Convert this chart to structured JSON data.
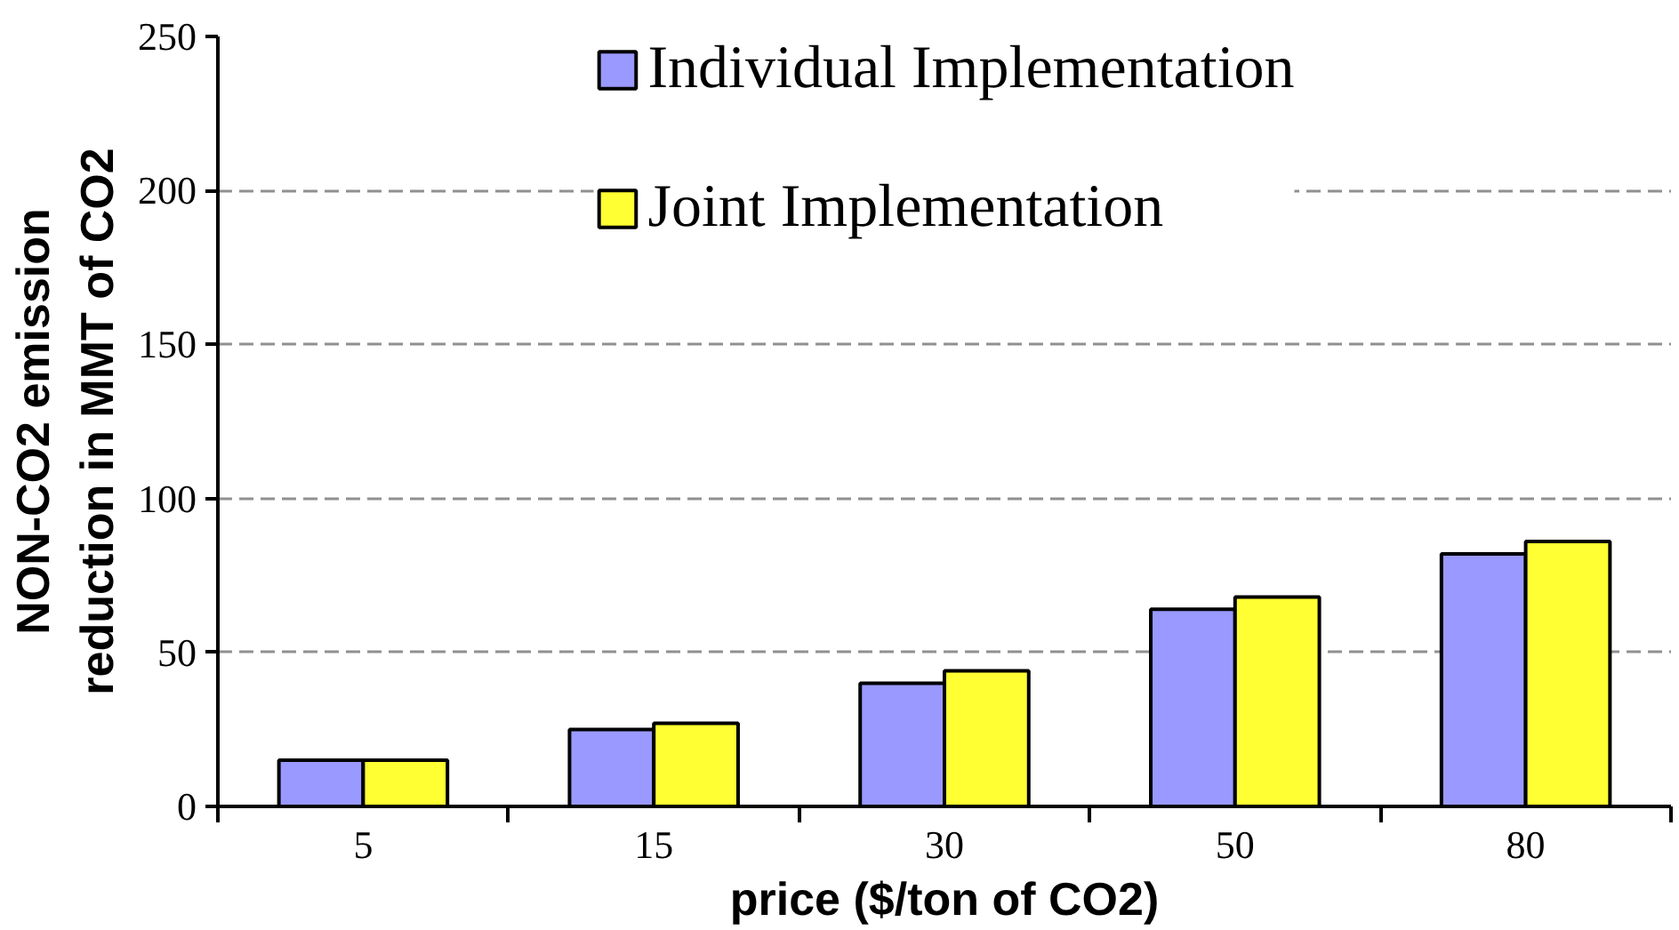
{
  "chart_data": {
    "type": "bar",
    "xlabel": "price ($/ton of CO2)",
    "ylabel": "NON-CO2 emission\nreduction in MMT of CO2",
    "categories": [
      "5",
      "15",
      "30",
      "50",
      "80"
    ],
    "series": [
      {
        "name": "Individual Implementation",
        "color": "#9999ff",
        "values": [
          15,
          25,
          40,
          64,
          82
        ]
      },
      {
        "name": "Joint Implementation",
        "color": "#ffff33",
        "values": [
          15,
          27,
          44,
          68,
          86
        ]
      }
    ],
    "ylim": [
      0,
      250
    ],
    "yticks": [
      0,
      50,
      100,
      150,
      200,
      250
    ],
    "grid": "y",
    "legend": "top"
  }
}
